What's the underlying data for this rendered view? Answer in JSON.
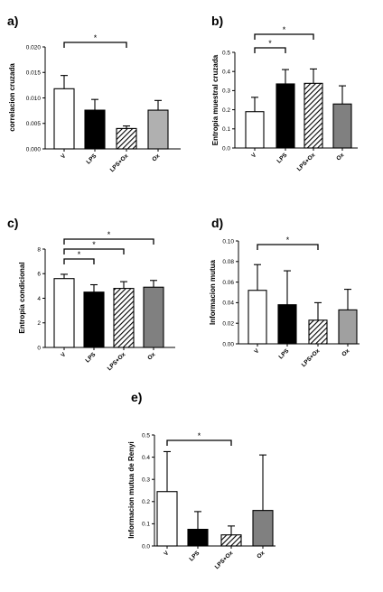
{
  "chart_data": [
    {
      "type": "bar",
      "panel": "a)",
      "ylabel": "correlacion cruzada",
      "categories": [
        "V",
        "LPS",
        "LPS+Ox",
        "Ox"
      ],
      "values": [
        0.0118,
        0.0076,
        0.004,
        0.0076
      ],
      "errors": [
        0.0026,
        0.0021,
        0.0005,
        0.0019
      ],
      "ylim": [
        0,
        0.02
      ],
      "yticks": [
        "0.000",
        "0.005",
        "0.010",
        "0.015",
        "0.020"
      ],
      "fills": [
        "white",
        "black",
        "hatch",
        "#b0b0b0"
      ],
      "significance": [
        {
          "from": 0,
          "to": 2,
          "label": "*"
        }
      ]
    },
    {
      "type": "bar",
      "panel": "b)",
      "ylabel": "Entropia muestral cruzada",
      "categories": [
        "V",
        "LPS",
        "LPS+Ox",
        "Ox"
      ],
      "values": [
        0.19,
        0.335,
        0.338,
        0.23
      ],
      "errors": [
        0.075,
        0.075,
        0.075,
        0.095
      ],
      "ylim": [
        0,
        0.5
      ],
      "yticks": [
        "0.0",
        "0.1",
        "0.2",
        "0.3",
        "0.4",
        "0.5"
      ],
      "fills": [
        "white",
        "black",
        "hatch",
        "#808080"
      ],
      "significance": [
        {
          "from": 0,
          "to": 1,
          "label": "*"
        },
        {
          "from": 0,
          "to": 2,
          "label": "*"
        }
      ]
    },
    {
      "type": "bar",
      "panel": "c)",
      "ylabel": "Entropia condicional",
      "categories": [
        "V",
        "LPS",
        "LPS+Ox",
        "Ox"
      ],
      "values": [
        5.6,
        4.5,
        4.8,
        4.9
      ],
      "errors": [
        0.35,
        0.6,
        0.55,
        0.55
      ],
      "ylim": [
        0,
        8
      ],
      "yticks": [
        "0",
        "2",
        "4",
        "6",
        "8"
      ],
      "fills": [
        "white",
        "black",
        "hatch",
        "#808080"
      ],
      "significance": [
        {
          "from": 0,
          "to": 1,
          "label": "*"
        },
        {
          "from": 0,
          "to": 2,
          "label": "*"
        },
        {
          "from": 0,
          "to": 3,
          "label": "*"
        }
      ]
    },
    {
      "type": "bar",
      "panel": "d)",
      "ylabel": "Informacion mutua",
      "categories": [
        "V",
        "LPS",
        "LPS+Ox",
        "Ox"
      ],
      "values": [
        0.052,
        0.038,
        0.023,
        0.033
      ],
      "errors": [
        0.025,
        0.033,
        0.017,
        0.02
      ],
      "ylim": [
        0,
        0.1
      ],
      "yticks": [
        "0.00",
        "0.02",
        "0.04",
        "0.06",
        "0.08",
        "0.10"
      ],
      "fills": [
        "white",
        "black",
        "hatch",
        "#a0a0a0"
      ],
      "significance": [
        {
          "from": 0,
          "to": 2,
          "label": "*"
        }
      ]
    },
    {
      "type": "bar",
      "panel": "e)",
      "ylabel": "Informacion mutua de Renyi",
      "categories": [
        "V",
        "LPS",
        "LPS+Ox",
        "Ox"
      ],
      "values": [
        0.245,
        0.075,
        0.05,
        0.16
      ],
      "errors": [
        0.18,
        0.08,
        0.04,
        0.25
      ],
      "ylim": [
        0,
        0.5
      ],
      "yticks": [
        "0.0",
        "0.1",
        "0.2",
        "0.3",
        "0.4",
        "0.5"
      ],
      "fills": [
        "white",
        "black",
        "hatch",
        "#808080"
      ],
      "significance": [
        {
          "from": 0,
          "to": 2,
          "label": "*"
        }
      ]
    }
  ]
}
